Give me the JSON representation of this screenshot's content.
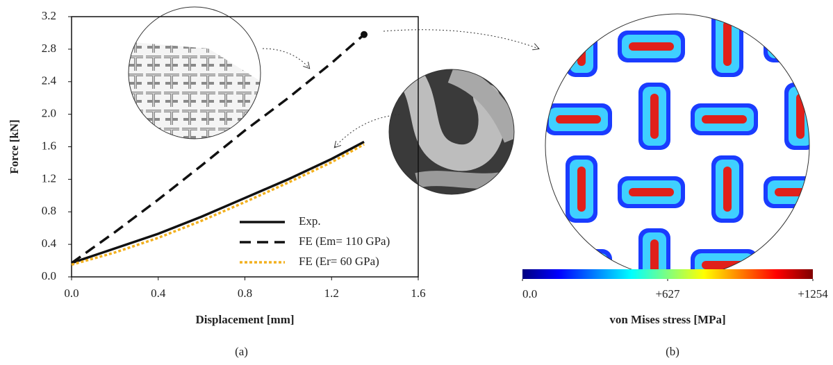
{
  "chart_data": [
    {
      "type": "line",
      "caption": "(a)",
      "xlabel": "Displacement [mm]",
      "ylabel": "Force [kN]",
      "xlim": [
        0,
        1.6
      ],
      "xticks": [
        {
          "value": 0,
          "label": "0.0"
        },
        0.4,
        0.8,
        1.2,
        1.6
      ],
      "ylim": [
        0,
        3.2
      ],
      "yticks": [
        {
          "value": 0,
          "label": "0.0"
        },
        0.4,
        0.8,
        1.2,
        1.6,
        {
          "value": 2,
          "label": "2.0"
        },
        2.4,
        2.8,
        3.2
      ],
      "legend": "lower right",
      "series": [
        {
          "name": "Exp.",
          "color": "#111111",
          "style": "solid",
          "x": [
            0,
            0.2,
            0.4,
            0.6,
            0.8,
            1.0,
            1.2,
            1.35
          ],
          "values": [
            0.17,
            0.35,
            0.53,
            0.74,
            0.97,
            1.2,
            1.45,
            1.66
          ]
        },
        {
          "name": "FE (Em= 110 GPa)",
          "color": "#111111",
          "style": "dashed",
          "end_marker": true,
          "x": [
            0,
            0.2,
            0.4,
            0.6,
            0.8,
            1.0,
            1.2,
            1.35
          ],
          "values": [
            0.17,
            0.55,
            0.95,
            1.37,
            1.8,
            2.2,
            2.63,
            2.98
          ]
        },
        {
          "name": "FE (Er= 60 GPa)",
          "color": "#f2b01e",
          "style": "dotted",
          "x": [
            0,
            0.2,
            0.4,
            0.6,
            0.8,
            1.0,
            1.2,
            1.35
          ],
          "values": [
            0.15,
            0.3,
            0.48,
            0.69,
            0.92,
            1.16,
            1.41,
            1.63
          ]
        }
      ]
    },
    {
      "type": "colorbar",
      "caption": "(b)",
      "xlabel": "von Mises stress [MPa]",
      "xlim": [
        0,
        1254
      ],
      "xticks": [
        {
          "value": 0,
          "label": "0.0"
        },
        {
          "value": 627,
          "label": "+627"
        },
        {
          "value": 1254,
          "label": "+1254"
        }
      ],
      "colors": [
        "#00007f",
        "#0000ff",
        "#007fff",
        "#00ffff",
        "#7fff7f",
        "#ffff00",
        "#ff7f00",
        "#ff0000",
        "#7f0000"
      ]
    }
  ]
}
